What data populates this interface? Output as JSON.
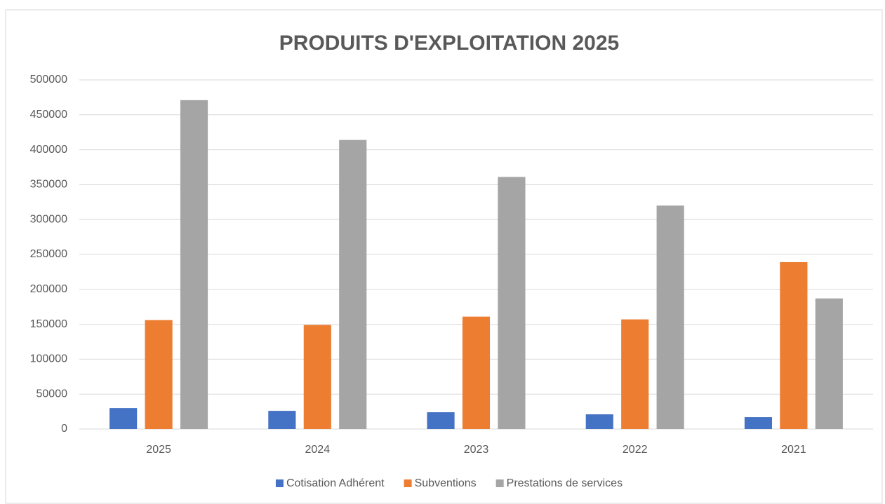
{
  "chart_data": {
    "type": "bar",
    "title": "PRODUITS D'EXPLOITATION 2025",
    "categories": [
      "2025",
      "2024",
      "2023",
      "2022",
      "2021"
    ],
    "series": [
      {
        "name": "Cotisation Adhérent",
        "color": "#4472c4",
        "values": [
          30000,
          26000,
          24000,
          21000,
          17000
        ]
      },
      {
        "name": "Subventions",
        "color": "#ed7d31",
        "values": [
          156000,
          149000,
          161000,
          157000,
          239000
        ]
      },
      {
        "name": "Prestations de services",
        "color": "#a5a5a5",
        "values": [
          471000,
          414000,
          361000,
          320000,
          187000
        ]
      }
    ],
    "ylim": [
      0,
      500000
    ],
    "yticks": [
      0,
      50000,
      100000,
      150000,
      200000,
      250000,
      300000,
      350000,
      400000,
      450000,
      500000
    ],
    "grid": true,
    "legend": "bottom"
  }
}
